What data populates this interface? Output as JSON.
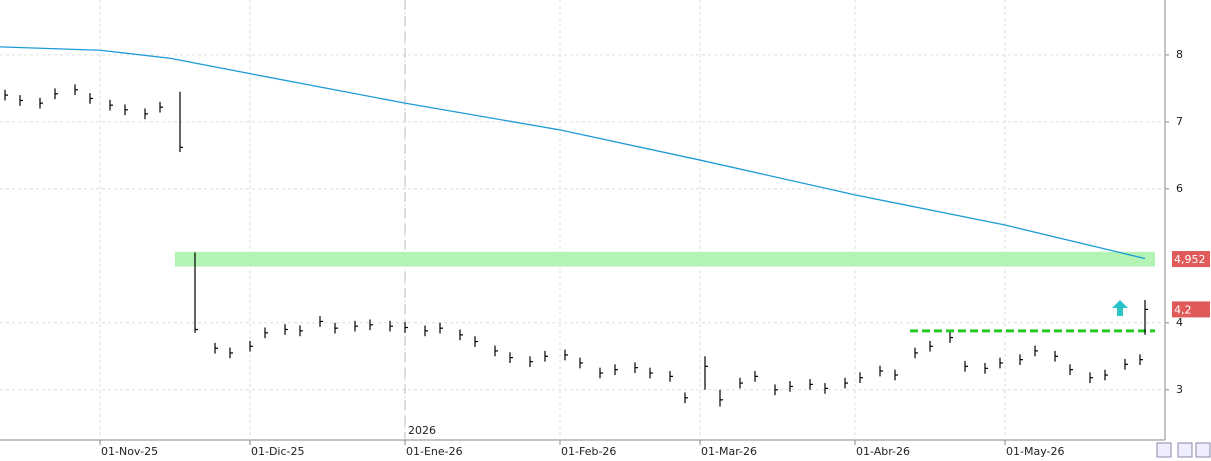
{
  "chart_data": {
    "type": "ohlc",
    "x": [
      "2025-10-13",
      "2025-10-16",
      "2025-10-20",
      "2025-10-23",
      "2025-10-27",
      "2025-10-30",
      "2025-11-03",
      "2025-11-06",
      "2025-11-10",
      "2025-11-13",
      "2025-11-17",
      "2025-11-20",
      "2025-11-24",
      "2025-11-27",
      "2025-12-01",
      "2025-12-04",
      "2025-12-08",
      "2025-12-11",
      "2025-12-15",
      "2025-12-18",
      "2025-12-22",
      "2025-12-25",
      "2025-12-29",
      "2026-01-01",
      "2026-01-05",
      "2026-01-08",
      "2026-01-12",
      "2026-01-15",
      "2026-01-19",
      "2026-01-22",
      "2026-01-26",
      "2026-01-29",
      "2026-02-02",
      "2026-02-05",
      "2026-02-09",
      "2026-02-12",
      "2026-02-16",
      "2026-02-19",
      "2026-02-23",
      "2026-02-26",
      "2026-03-02",
      "2026-03-05",
      "2026-03-09",
      "2026-03-12",
      "2026-03-16",
      "2026-03-19",
      "2026-03-23",
      "2026-03-26",
      "2026-03-30",
      "2026-04-02",
      "2026-04-06",
      "2026-04-09",
      "2026-04-13",
      "2026-04-16",
      "2026-04-20",
      "2026-04-23",
      "2026-04-27",
      "2026-04-30",
      "2026-05-04",
      "2026-05-07",
      "2026-05-11",
      "2026-05-14",
      "2026-05-18",
      "2026-05-21",
      "2026-05-25",
      "2026-05-28",
      "2026-05-29"
    ],
    "high": [
      7.48,
      7.4,
      7.36,
      7.5,
      7.56,
      7.43,
      7.33,
      7.26,
      7.2,
      7.3,
      7.45,
      5.05,
      3.7,
      3.63,
      3.73,
      3.93,
      3.98,
      3.96,
      4.1,
      4.0,
      4.03,
      4.05,
      4.03,
      4.01,
      3.96,
      4.0,
      3.9,
      3.8,
      3.66,
      3.56,
      3.5,
      3.58,
      3.6,
      3.48,
      3.33,
      3.38,
      3.41,
      3.33,
      3.28,
      2.96,
      3.5,
      3.0,
      3.18,
      3.28,
      3.08,
      3.13,
      3.16,
      3.1,
      3.18,
      3.26,
      3.36,
      3.3,
      3.63,
      3.73,
      3.86,
      3.43,
      3.4,
      3.48,
      3.53,
      3.66,
      3.58,
      3.38,
      3.26,
      3.3,
      3.46,
      3.53,
      4.34
    ],
    "low": [
      7.32,
      7.24,
      7.2,
      7.34,
      7.4,
      7.27,
      7.17,
      7.1,
      7.04,
      7.14,
      6.55,
      3.85,
      3.54,
      3.47,
      3.57,
      3.77,
      3.82,
      3.8,
      3.94,
      3.84,
      3.87,
      3.89,
      3.87,
      3.85,
      3.8,
      3.84,
      3.74,
      3.64,
      3.5,
      3.4,
      3.34,
      3.42,
      3.44,
      3.32,
      3.17,
      3.22,
      3.25,
      3.17,
      3.12,
      2.8,
      3.0,
      2.75,
      3.02,
      3.12,
      2.92,
      2.97,
      3.0,
      2.94,
      3.02,
      3.1,
      3.2,
      3.14,
      3.47,
      3.57,
      3.7,
      3.27,
      3.24,
      3.32,
      3.37,
      3.5,
      3.42,
      3.22,
      3.1,
      3.14,
      3.3,
      3.37,
      3.82
    ],
    "close": [
      7.4,
      7.32,
      7.28,
      7.42,
      7.48,
      7.35,
      7.25,
      7.18,
      7.12,
      7.22,
      6.62,
      3.9,
      3.62,
      3.55,
      3.65,
      3.85,
      3.9,
      3.88,
      4.02,
      3.92,
      3.95,
      3.97,
      3.95,
      3.93,
      3.88,
      3.92,
      3.82,
      3.72,
      3.58,
      3.48,
      3.42,
      3.5,
      3.52,
      3.4,
      3.25,
      3.3,
      3.33,
      3.25,
      3.2,
      2.88,
      3.35,
      2.85,
      3.1,
      3.2,
      3.0,
      3.05,
      3.08,
      3.02,
      3.1,
      3.18,
      3.28,
      3.22,
      3.55,
      3.65,
      3.78,
      3.35,
      3.32,
      3.4,
      3.45,
      3.58,
      3.5,
      3.3,
      3.18,
      3.22,
      3.38,
      3.45,
      4.2
    ],
    "bar_color": "#000000",
    "moving_average": {
      "color": "#1e9bd7",
      "x": [
        "2025-10-12",
        "2025-11-01",
        "2025-11-15",
        "2025-12-01",
        "2026-01-01",
        "2026-02-01",
        "2026-03-01",
        "2026-04-01",
        "2026-05-01",
        "2026-05-29"
      ],
      "values": [
        8.12,
        8.07,
        7.95,
        7.72,
        7.28,
        6.88,
        6.43,
        5.91,
        5.46,
        4.96
      ]
    },
    "band": {
      "from": 4.84,
      "to": 5.06,
      "start": "2025-11-16",
      "color": "#b3f3b3"
    },
    "level_line": {
      "value": 3.88,
      "start": "2026-04-12",
      "color": "#22cc22"
    },
    "year_marker": {
      "date": "2026-01-01",
      "label": "2026"
    },
    "price_labels": [
      {
        "value": 4.952,
        "label": "4,952"
      },
      {
        "value": 4.2,
        "label": "4,2"
      }
    ],
    "label_color": "#e05a5a",
    "xlim": [
      "2025-10-12",
      "2026-06-02"
    ],
    "xticks": [
      {
        "value": "2025-11-01",
        "label": "01-Nov-25"
      },
      {
        "value": "2025-12-01",
        "label": "01-Dic-25"
      },
      {
        "value": "2026-01-01",
        "label": "01-Ene-26"
      },
      {
        "value": "2026-02-01",
        "label": "01-Feb-26"
      },
      {
        "value": "2026-03-01",
        "label": "01-Mar-26"
      },
      {
        "value": "2026-04-01",
        "label": "01-Abr-26"
      },
      {
        "value": "2026-05-01",
        "label": "01-May-26"
      }
    ],
    "ylim": [
      2.25,
      8.82
    ],
    "yticks": [
      3,
      4,
      6,
      7,
      8
    ],
    "grid": true
  }
}
